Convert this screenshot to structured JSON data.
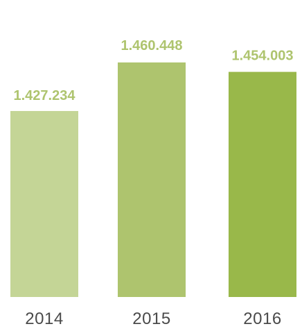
{
  "chart_data": {
    "type": "bar",
    "categories": [
      "2014",
      "2015",
      "2016"
    ],
    "values": [
      1427234,
      1460448,
      1454003
    ],
    "data_labels": [
      "1.427.234",
      "1.460.448",
      "1.454.003"
    ],
    "title": "",
    "xlabel": "",
    "ylabel": "",
    "ylim": [
      0,
      1500000
    ],
    "grid": false,
    "legend": "none",
    "bar_colors": [
      "#c4d596",
      "#aec46e",
      "#99b84a"
    ],
    "label_color": "#aec46e",
    "category_color": "#4a4a4a"
  }
}
